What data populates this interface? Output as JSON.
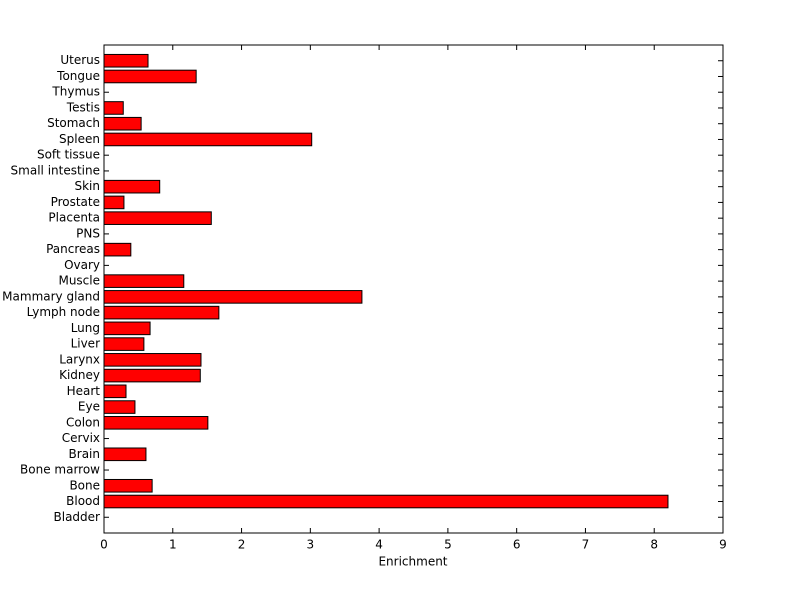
{
  "chart_data": {
    "type": "barh",
    "x_label": "Enrichment",
    "categories": [
      "Bladder",
      "Blood",
      "Bone",
      "Bone marrow",
      "Brain",
      "Cervix",
      "Colon",
      "Eye",
      "Heart",
      "Kidney",
      "Larynx",
      "Liver",
      "Lung",
      "Lymph node",
      "Mammary gland",
      "Muscle",
      "Ovary",
      "Pancreas",
      "PNS",
      "Placenta",
      "Prostate",
      "Skin",
      "Small intestine",
      "Soft tissue",
      "Spleen",
      "Stomach",
      "Testis",
      "Thymus",
      "Tongue",
      "Uterus"
    ],
    "values": [
      0,
      8.2,
      0.7,
      0,
      0.61,
      0,
      1.51,
      0.45,
      0.32,
      1.4,
      1.41,
      0.58,
      0.67,
      1.67,
      3.75,
      1.16,
      0,
      0.39,
      0,
      1.56,
      0.29,
      0.81,
      0,
      0,
      3.02,
      0.54,
      0.28,
      0,
      1.34,
      0.64
    ],
    "color": "#ff0000",
    "xlim": [
      0,
      9
    ],
    "xticks": [
      0,
      1,
      2,
      3,
      4,
      5,
      6,
      7,
      8,
      9
    ]
  }
}
